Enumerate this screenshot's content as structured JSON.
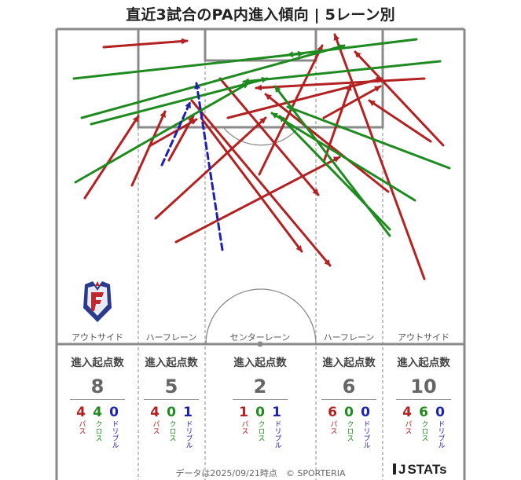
{
  "title": "直近3試合のPA内進入傾向 | 5レーン別",
  "footer": "データは2025/09/21時点　© SPORTERIA",
  "logo_text": "STATs",
  "logo_prefix": "J",
  "team_emblem": "fagiano-okayama-emblem",
  "colors": {
    "pass": "#b22222",
    "cross": "#1f8a1f",
    "dribble": "#1f1fb0",
    "pitch_line": "#8a8a8a"
  },
  "lanes": [
    {
      "label": "アウトサイド"
    },
    {
      "label": "ハーフレーン"
    },
    {
      "label": "センターレーン"
    },
    {
      "label": "ハーフレーン"
    },
    {
      "label": "アウトサイド"
    }
  ],
  "stats_header": "進入起点数",
  "chart_data": {
    "type": "arrow-map",
    "title": "直近3試合のPA内進入傾向 | 5レーン別",
    "legend": [
      "パス",
      "クロス",
      "ドリブル"
    ],
    "lanes": [
      "アウトサイド",
      "ハーフレーン",
      "センターレーン",
      "ハーフレーン",
      "アウトサイド"
    ],
    "totals": [
      8,
      5,
      2,
      6,
      10
    ],
    "breakdown": [
      {
        "pass": 4,
        "cross": 4,
        "dribble": 0
      },
      {
        "pass": 4,
        "cross": 0,
        "dribble": 1
      },
      {
        "pass": 1,
        "cross": 0,
        "dribble": 1
      },
      {
        "pass": 6,
        "cross": 0,
        "dribble": 0
      },
      {
        "pass": 4,
        "cross": 6,
        "dribble": 0
      }
    ],
    "breakdown_labels": {
      "pass": "パス",
      "cross": "クロス",
      "dribble": "ドリブル"
    },
    "arrows": [
      {
        "kind": "pass",
        "from": [
          108,
          252
        ],
        "to": [
          176,
          148
        ]
      },
      {
        "kind": "pass",
        "from": [
          168,
          236
        ],
        "to": [
          210,
          142
        ]
      },
      {
        "kind": "pass",
        "from": [
          198,
          278
        ],
        "to": [
          338,
          150
        ]
      },
      {
        "kind": "pass",
        "from": [
          190,
          186
        ],
        "to": [
          250,
          152
        ]
      },
      {
        "kind": "pass",
        "from": [
          215,
          204
        ],
        "to": [
          246,
          148
        ]
      },
      {
        "kind": "pass",
        "from": [
          224,
          308
        ],
        "to": [
          432,
          200
        ]
      },
      {
        "kind": "pass",
        "from": [
          132,
          60
        ],
        "to": [
          238,
          52
        ]
      },
      {
        "kind": "pass",
        "from": [
          244,
          128
        ],
        "to": [
          420,
          338
        ]
      },
      {
        "kind": "pass",
        "from": [
          280,
          100
        ],
        "to": [
          405,
          248
        ]
      },
      {
        "kind": "pass",
        "from": [
          256,
          150
        ],
        "to": [
          384,
          320
        ]
      },
      {
        "kind": "pass",
        "from": [
          330,
          222
        ],
        "to": [
          410,
          58
        ]
      },
      {
        "kind": "pass",
        "from": [
          412,
          206
        ],
        "to": [
          446,
          108
        ]
      },
      {
        "kind": "pass",
        "from": [
          412,
          150
        ],
        "to": [
          484,
          110
        ]
      },
      {
        "kind": "pass",
        "from": [
          290,
          150
        ],
        "to": [
          486,
          100
        ]
      },
      {
        "kind": "pass",
        "from": [
          540,
          355
        ],
        "to": [
          426,
          44
        ]
      },
      {
        "kind": "pass",
        "from": [
          548,
          180
        ],
        "to": [
          470,
          128
        ]
      },
      {
        "kind": "pass",
        "from": [
          564,
          185
        ],
        "to": [
          452,
          66
        ]
      },
      {
        "kind": "pass",
        "from": [
          540,
          100
        ],
        "to": [
          326,
          112
        ]
      },
      {
        "kind": "pass",
        "from": [
          494,
          244
        ],
        "to": [
          338,
          120
        ]
      },
      {
        "kind": "cross",
        "from": [
          94,
          100
        ],
        "to": [
          386,
          68
        ]
      },
      {
        "kind": "cross",
        "from": [
          104,
          150
        ],
        "to": [
          438,
          58
        ]
      },
      {
        "kind": "cross",
        "from": [
          116,
          158
        ],
        "to": [
          340,
          100
        ]
      },
      {
        "kind": "cross",
        "from": [
          96,
          232
        ],
        "to": [
          316,
          106
        ]
      },
      {
        "kind": "cross",
        "from": [
          530,
          50
        ],
        "to": [
          366,
          70
        ]
      },
      {
        "kind": "cross",
        "from": [
          560,
          78
        ],
        "to": [
          310,
          104
        ]
      },
      {
        "kind": "cross",
        "from": [
          572,
          214
        ],
        "to": [
          366,
          136
        ]
      },
      {
        "kind": "cross",
        "from": [
          528,
          255
        ],
        "to": [
          346,
          144
        ]
      },
      {
        "kind": "cross",
        "from": [
          496,
          292
        ],
        "to": [
          356,
          148
        ]
      },
      {
        "kind": "cross",
        "from": [
          496,
          300
        ],
        "to": [
          350,
          110
        ]
      },
      {
        "kind": "dribble",
        "from": [
          283,
          318
        ],
        "to": [
          250,
          106
        ]
      },
      {
        "kind": "dribble",
        "from": [
          206,
          210
        ],
        "to": [
          242,
          130
        ]
      }
    ],
    "xlim": [
      0,
      663
    ],
    "ylim": [
      0,
      611
    ]
  }
}
